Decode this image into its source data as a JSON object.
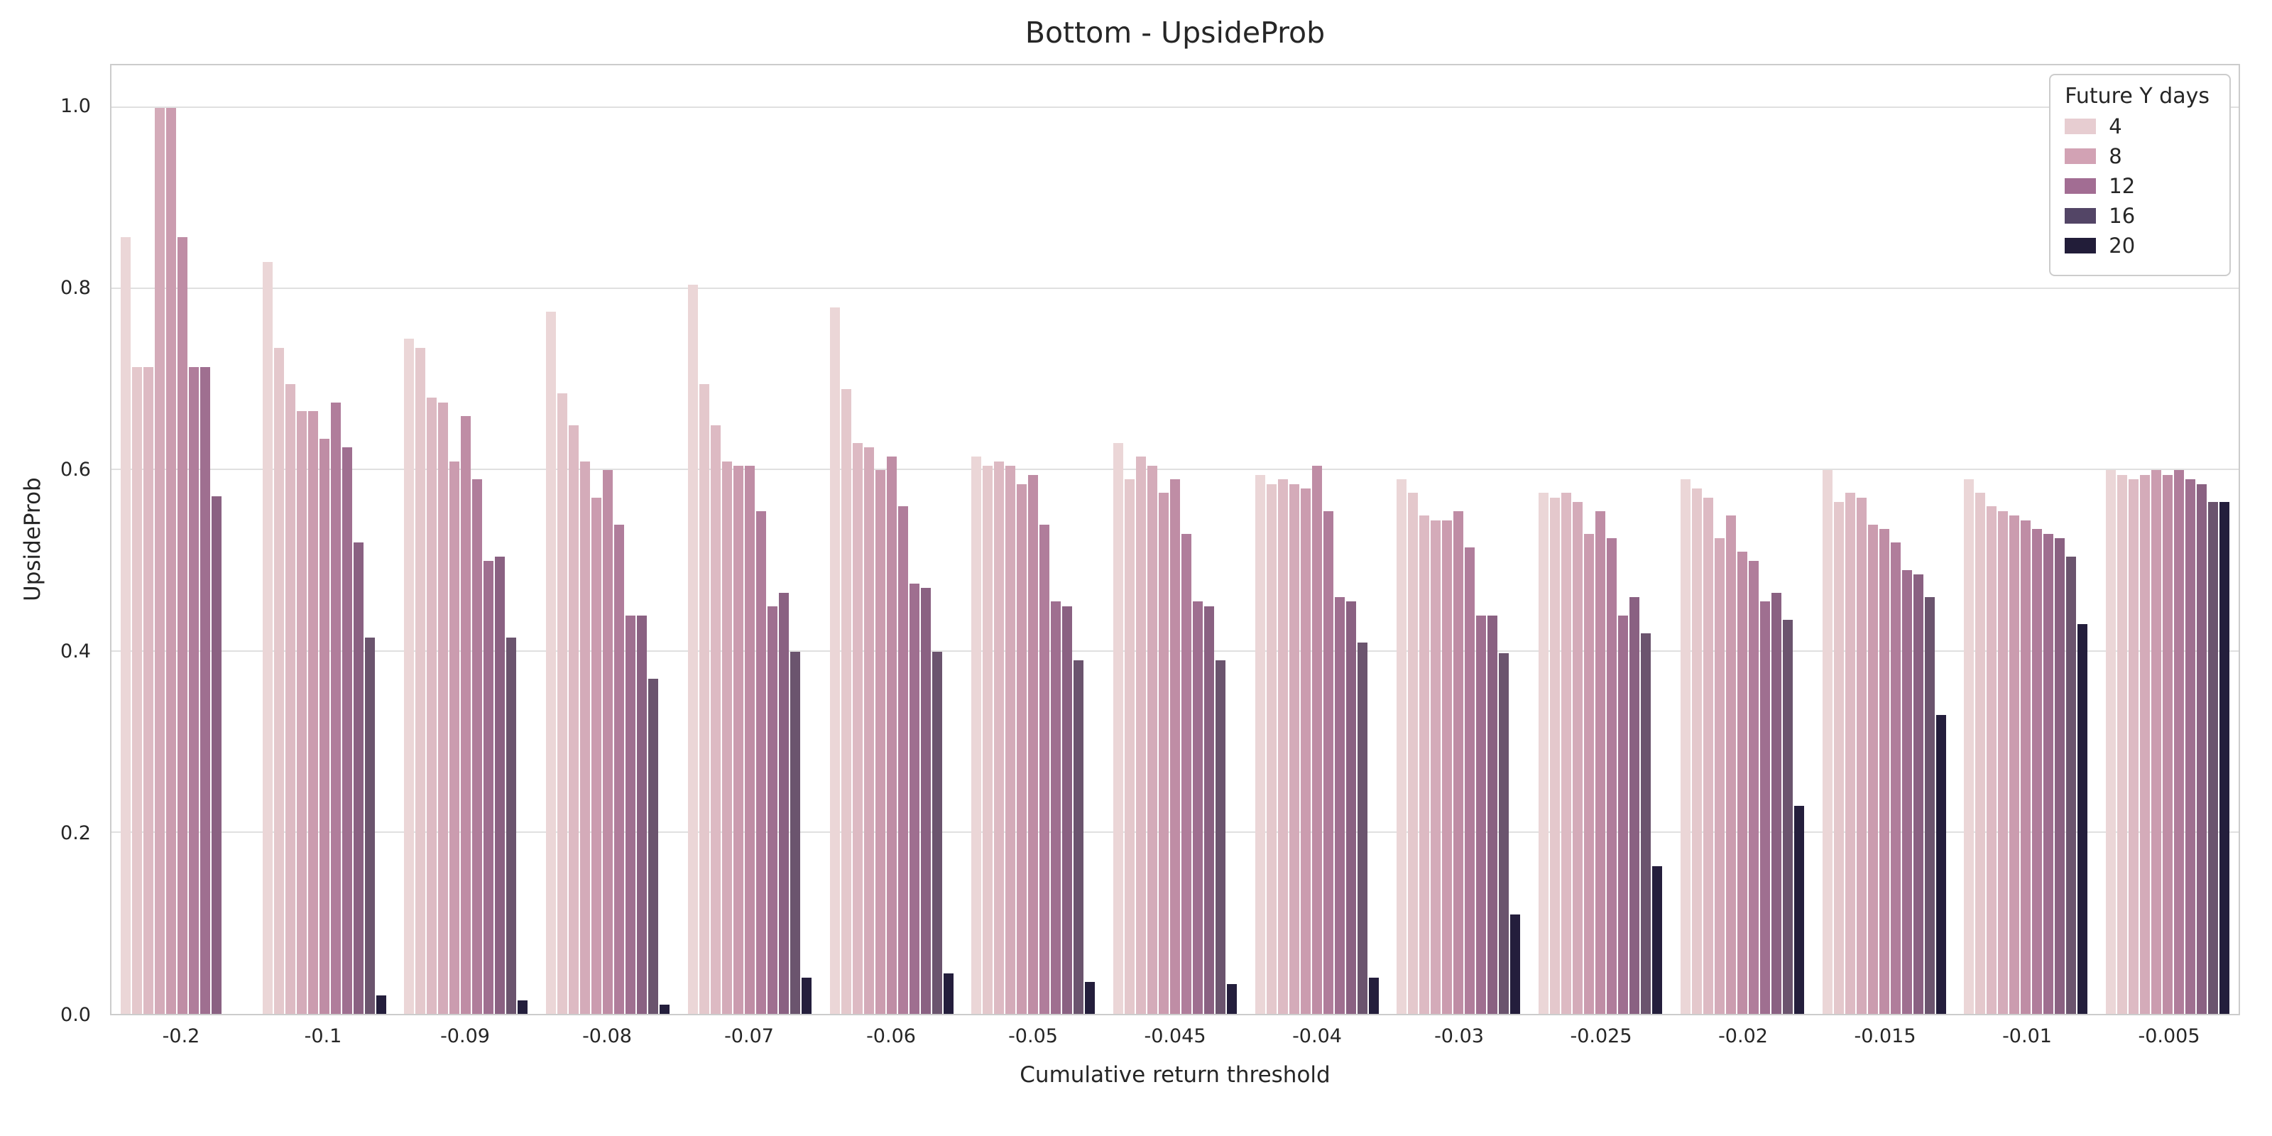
{
  "title": "Bottom - UpsideProb",
  "axes": {
    "x_label": "Cumulative return threshold",
    "y_label": "UpsideProb",
    "y_ticks": [
      "0.0",
      "0.2",
      "0.4",
      "0.6",
      "0.8",
      "1.0"
    ]
  },
  "legend": {
    "title": "Future Y days",
    "entries": [
      {
        "label": "4",
        "color": "#e7cdd1"
      },
      {
        "label": "8",
        "color": "#d2a2b4"
      },
      {
        "label": "12",
        "color": "#a26d93"
      },
      {
        "label": "16",
        "color": "#534566"
      },
      {
        "label": "20",
        "color": "#221d39"
      }
    ]
  },
  "chart_data": {
    "type": "bar",
    "title": "Bottom - UpsideProb",
    "xlabel": "Cumulative return threshold",
    "ylabel": "UpsideProb",
    "ylim": [
      0,
      1.047
    ],
    "grid": "horizontal",
    "legend_position": "upper right",
    "legend_title": "Future Y days",
    "legend_labels": [
      "4",
      "8",
      "12",
      "16",
      "20"
    ],
    "bars_per_group": 11,
    "palette": [
      "#ebd6d7",
      "#e4c8cc",
      "#ddbac3",
      "#d4abb9",
      "#cb9caf",
      "#bf8da5",
      "#b07d9b",
      "#9f6f90",
      "#8a6182",
      "#6b546e",
      "#241e3c"
    ],
    "categories": [
      "-0.2",
      "-0.1",
      "-0.09",
      "-0.08",
      "-0.07",
      "-0.06",
      "-0.05",
      "-0.045",
      "-0.04",
      "-0.03",
      "-0.025",
      "-0.02",
      "-0.015",
      "-0.01",
      "-0.005"
    ],
    "groups": [
      {
        "category": "-0.2",
        "values": [
          0.857,
          0.714,
          0.714,
          1.0,
          1.0,
          0.857,
          0.714,
          0.714,
          0.571,
          0,
          0
        ]
      },
      {
        "category": "-0.1",
        "values": [
          0.83,
          0.735,
          0.695,
          0.665,
          0.665,
          0.635,
          0.675,
          0.625,
          0.52,
          0.415,
          0.02
        ]
      },
      {
        "category": "-0.09",
        "values": [
          0.745,
          0.735,
          0.68,
          0.675,
          0.61,
          0.66,
          0.59,
          0.5,
          0.505,
          0.415,
          0.015
        ]
      },
      {
        "category": "-0.08",
        "values": [
          0.775,
          0.685,
          0.65,
          0.61,
          0.57,
          0.6,
          0.54,
          0.44,
          0.44,
          0.37,
          0.01
        ]
      },
      {
        "category": "-0.07",
        "values": [
          0.805,
          0.695,
          0.65,
          0.61,
          0.605,
          0.605,
          0.555,
          0.45,
          0.465,
          0.4,
          0.04
        ]
      },
      {
        "category": "-0.06",
        "values": [
          0.78,
          0.69,
          0.63,
          0.625,
          0.6,
          0.615,
          0.56,
          0.475,
          0.47,
          0.4,
          0.045
        ]
      },
      {
        "category": "-0.05",
        "values": [
          0.615,
          0.605,
          0.61,
          0.605,
          0.585,
          0.595,
          0.54,
          0.455,
          0.45,
          0.39,
          0.035
        ]
      },
      {
        "category": "-0.045",
        "values": [
          0.63,
          0.59,
          0.615,
          0.605,
          0.575,
          0.59,
          0.53,
          0.455,
          0.45,
          0.39,
          0.033
        ]
      },
      {
        "category": "-0.04",
        "values": [
          0.595,
          0.585,
          0.59,
          0.585,
          0.58,
          0.605,
          0.555,
          0.46,
          0.455,
          0.41,
          0.04
        ]
      },
      {
        "category": "-0.03",
        "values": [
          0.59,
          0.575,
          0.55,
          0.545,
          0.545,
          0.555,
          0.515,
          0.44,
          0.44,
          0.398,
          0.11
        ]
      },
      {
        "category": "-0.025",
        "values": [
          0.575,
          0.57,
          0.575,
          0.565,
          0.53,
          0.555,
          0.525,
          0.44,
          0.46,
          0.42,
          0.163
        ]
      },
      {
        "category": "-0.02",
        "values": [
          0.59,
          0.58,
          0.57,
          0.525,
          0.55,
          0.51,
          0.5,
          0.455,
          0.465,
          0.435,
          0.23
        ]
      },
      {
        "category": "-0.015",
        "values": [
          0.6,
          0.565,
          0.575,
          0.57,
          0.54,
          0.535,
          0.52,
          0.49,
          0.485,
          0.46,
          0.33
        ]
      },
      {
        "category": "-0.01",
        "values": [
          0.59,
          0.575,
          0.56,
          0.555,
          0.55,
          0.545,
          0.535,
          0.53,
          0.525,
          0.505,
          0.43
        ]
      },
      {
        "category": "-0.005",
        "values": [
          0.6,
          0.595,
          0.59,
          0.595,
          0.6,
          0.595,
          0.6,
          0.59,
          0.585,
          0.565,
          0.565
        ]
      }
    ]
  }
}
